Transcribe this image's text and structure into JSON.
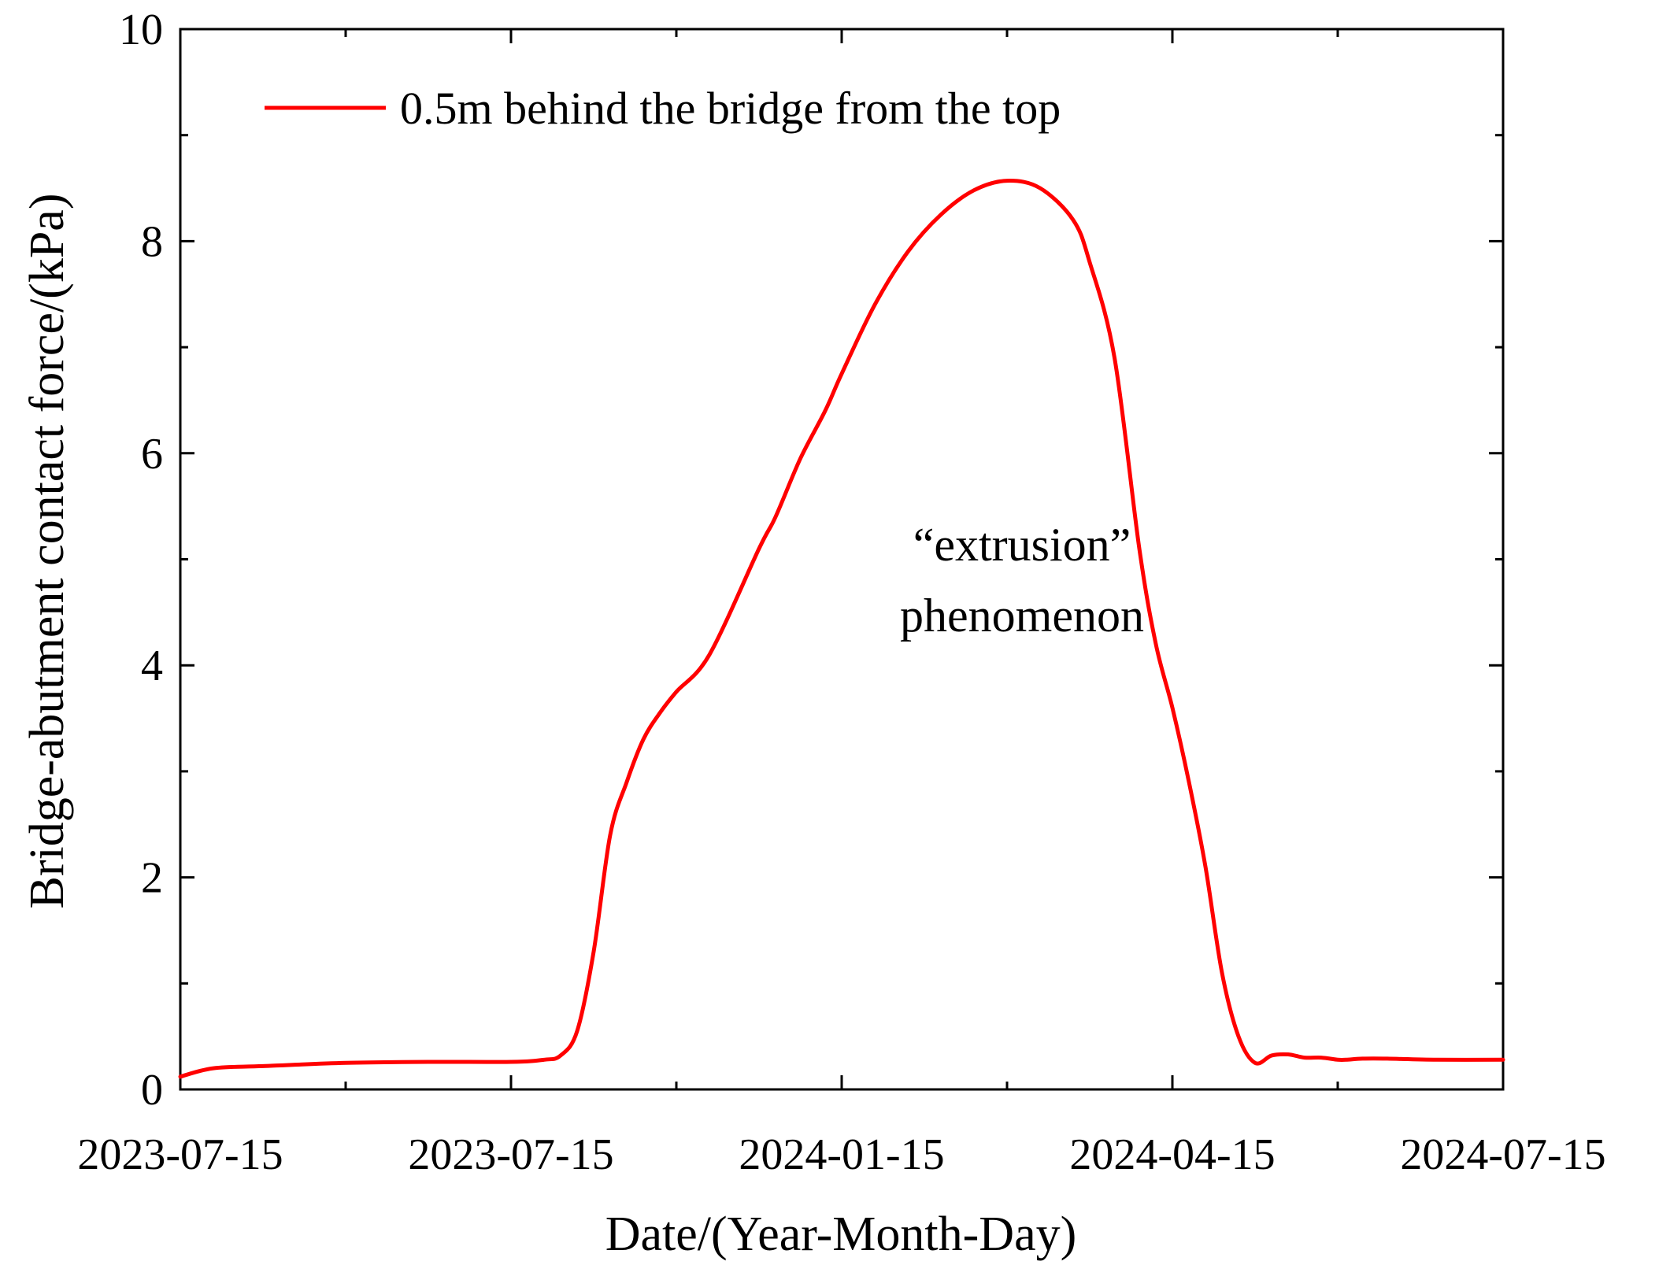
{
  "chart_data": {
    "type": "line",
    "title": "",
    "xlabel": "Date/(Year-Month-Day)",
    "ylabel": "Bridge-abutment  contact  force/(kPa)",
    "ylim": [
      0,
      10
    ],
    "xlim": [
      0,
      8
    ],
    "y_ticks": [
      0,
      2,
      4,
      6,
      8,
      10
    ],
    "x_tick_labels": [
      "2023-07-15",
      "2023-07-15",
      "2024-01-15",
      "2024-04-15",
      "2024-07-15"
    ],
    "grid": false,
    "legend": {
      "position": "top-left",
      "entries": [
        "0.5m behind the bridge from the top"
      ]
    },
    "annotations": [
      "“extrusion”",
      "phenomenon"
    ],
    "series": [
      {
        "name": "0.5m behind the bridge from the top",
        "color": "#ff0000",
        "x": [
          0,
          0.2,
          0.5,
          1.0,
          1.5,
          2.0,
          2.2,
          2.3,
          2.4,
          2.5,
          2.6,
          2.7,
          2.8,
          2.9,
          3.0,
          3.2,
          3.5,
          3.6,
          3.75,
          3.9,
          4.0,
          4.2,
          4.4,
          4.6,
          4.8,
          5.0,
          5.2,
          5.4,
          5.5,
          5.65,
          5.8,
          5.9,
          6.0,
          6.1,
          6.2,
          6.3,
          6.4,
          6.5,
          6.6,
          6.7,
          6.8,
          6.9,
          7.0,
          7.05,
          7.15,
          7.3,
          7.6,
          8.0
        ],
        "values": [
          0.12,
          0.2,
          0.22,
          0.25,
          0.26,
          0.26,
          0.28,
          0.32,
          0.55,
          1.3,
          2.4,
          2.9,
          3.3,
          3.55,
          3.75,
          4.1,
          5.1,
          5.4,
          5.95,
          6.4,
          6.75,
          7.4,
          7.9,
          8.25,
          8.48,
          8.57,
          8.5,
          8.2,
          7.8,
          6.9,
          5.1,
          4.2,
          3.6,
          2.9,
          2.1,
          1.1,
          0.5,
          0.25,
          0.32,
          0.33,
          0.3,
          0.3,
          0.28,
          0.28,
          0.29,
          0.29,
          0.28,
          0.28
        ]
      }
    ]
  }
}
